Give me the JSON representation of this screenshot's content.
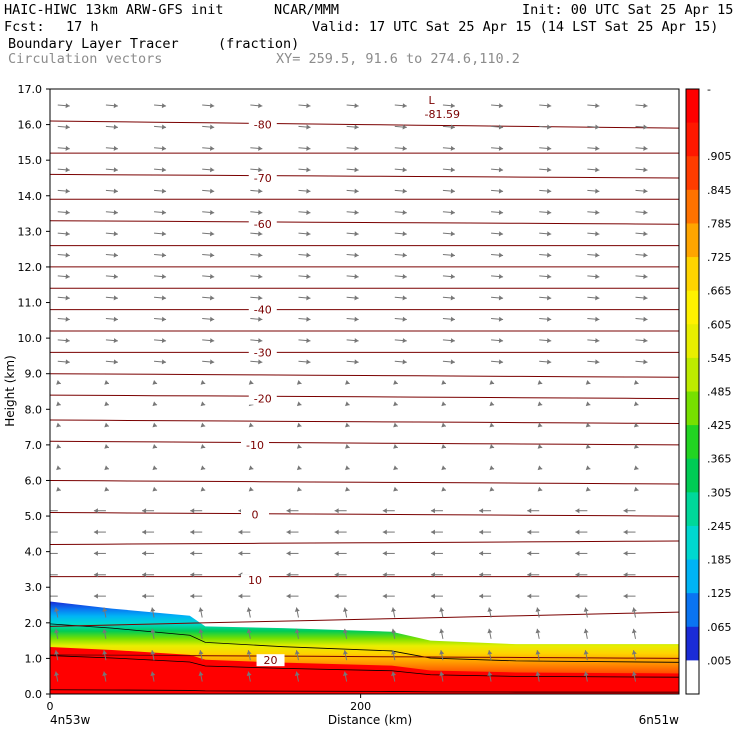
{
  "header": {
    "title_line": "HAIC-HIWC 13km ARW-GFS init",
    "org": "NCAR/MMM",
    "init": "Init: 00 UTC Sat 25 Apr 15",
    "fcst_label": "Fcst:",
    "fcst_value": "17 h",
    "valid": "Valid: 17 UTC Sat 25 Apr 15 (14 LST Sat 25 Apr 15)",
    "field_name": "Boundary Layer Tracer",
    "field_units": "(fraction)",
    "vector_label": "Circulation vectors",
    "xy_label": "XY= 259.5, 91.6 to 274.6,110.2"
  },
  "colors": {
    "contour": "#7a0000",
    "vector": "#777777",
    "isoline_black": "#000000"
  },
  "chart_data": {
    "type": "heatmap",
    "xlabel": "Distance (km)",
    "ylabel": "Height (km)",
    "xlim": [
      0,
      405
    ],
    "ylim": [
      0,
      17
    ],
    "x_ticks": [
      {
        "value": 0,
        "label": "0"
      },
      {
        "value": 200,
        "label": "200"
      }
    ],
    "x_end_labels": {
      "left": "4n53w",
      "right": "6n51w"
    },
    "y_ticks": [
      "0.0",
      "1.0",
      "2.0",
      "3.0",
      "4.0",
      "5.0",
      "6.0",
      "7.0",
      "8.0",
      "9.0",
      "10.0",
      "11.0",
      "12.0",
      "13.0",
      "14.0",
      "15.0",
      "16.0",
      "17.0"
    ],
    "colorbar": {
      "labels": [
        ".005",
        ".065",
        ".125",
        ".185",
        ".245",
        ".305",
        ".365",
        ".425",
        ".485",
        ".545",
        ".605",
        ".665",
        ".725",
        ".785",
        ".845",
        ".905"
      ],
      "top_tick": "-",
      "colors": [
        "#ffffff",
        "#1a2bd6",
        "#0a74f2",
        "#00b4f5",
        "#00d8d0",
        "#00d89a",
        "#00cc55",
        "#22d422",
        "#77e000",
        "#bdeb00",
        "#e8ee00",
        "#fff100",
        "#ffd400",
        "#ffa500",
        "#ff7200",
        "#ff3c00",
        "#ff1800",
        "#ff0000"
      ]
    },
    "tracer_top_profile": [
      {
        "x": 0,
        "top": 2.6,
        "core": 2.4
      },
      {
        "x": 40,
        "top": 2.4,
        "core": 2.25
      },
      {
        "x": 90,
        "top": 2.2,
        "core": 2.0
      },
      {
        "x": 100,
        "top": 1.9,
        "core": 1.75
      },
      {
        "x": 150,
        "top": 1.85,
        "core": 1.6
      },
      {
        "x": 220,
        "top": 1.75,
        "core": 1.45
      },
      {
        "x": 245,
        "top": 1.5,
        "core": 1.2
      },
      {
        "x": 300,
        "top": 1.4,
        "core": 1.1
      },
      {
        "x": 405,
        "top": 1.4,
        "core": 1.05
      }
    ],
    "temperature_contours": [
      {
        "label": "-80",
        "y_left": 16.1,
        "y_right": 15.9,
        "label_positions": [
          [
            55,
            16.0
          ],
          [
            380,
            15.9
          ]
        ]
      },
      {
        "label": "",
        "y_left": 15.2,
        "y_right": 15.2,
        "label_positions": []
      },
      {
        "label": "-70",
        "y_left": 14.6,
        "y_right": 14.5,
        "label_positions": [
          [
            55,
            14.5
          ],
          [
            380,
            14.5
          ]
        ]
      },
      {
        "label": "",
        "y_left": 13.9,
        "y_right": 13.9,
        "label_positions": []
      },
      {
        "label": "-60",
        "y_left": 13.3,
        "y_right": 13.2,
        "label_positions": [
          [
            55,
            13.2
          ],
          [
            380,
            13.2
          ]
        ]
      },
      {
        "label": "",
        "y_left": 12.6,
        "y_right": 12.6,
        "label_positions": []
      },
      {
        "label": "",
        "y_left": 12.0,
        "y_right": 12.0,
        "label_positions": []
      },
      {
        "label": "",
        "y_left": 11.4,
        "y_right": 11.4,
        "label_positions": []
      },
      {
        "label": "-40",
        "y_left": 10.8,
        "y_right": 10.8,
        "label_positions": [
          [
            55,
            10.8
          ],
          [
            380,
            10.8
          ]
        ]
      },
      {
        "label": "",
        "y_left": 10.2,
        "y_right": 10.2,
        "label_positions": []
      },
      {
        "label": "-30",
        "y_left": 9.6,
        "y_right": 9.6,
        "label_positions": [
          [
            55,
            9.6
          ],
          [
            380,
            9.6
          ]
        ]
      },
      {
        "label": "",
        "y_left": 9.0,
        "y_right": 8.9,
        "label_positions": []
      },
      {
        "label": "-20",
        "y_left": 8.4,
        "y_right": 8.3,
        "label_positions": [
          [
            55,
            8.3
          ],
          [
            380,
            8.3
          ]
        ]
      },
      {
        "label": "",
        "y_left": 7.7,
        "y_right": 7.6,
        "label_positions": []
      },
      {
        "label": "-10",
        "y_left": 7.1,
        "y_right": 7.0,
        "label_positions": [
          [
            50,
            7.0
          ],
          [
            370,
            7.0
          ]
        ]
      },
      {
        "label": "",
        "y_left": 6.0,
        "y_right": 5.9,
        "label_positions": []
      },
      {
        "label": "0",
        "y_left": 5.1,
        "y_right": 5.0,
        "label_positions": [
          [
            50,
            5.05
          ],
          [
            370,
            5.0
          ]
        ]
      },
      {
        "label": "",
        "y_left": 4.2,
        "y_right": 4.3,
        "label_positions": []
      },
      {
        "label": "10",
        "y_left": 3.3,
        "y_right": 3.3,
        "label_positions": [
          [
            50,
            3.2
          ],
          [
            370,
            3.2
          ]
        ]
      },
      {
        "label": "",
        "y_left": 1.9,
        "y_right": 2.3,
        "label_positions": []
      },
      {
        "label": "20",
        "y_left": 1.1,
        "y_right": 1.0,
        "label_positions": [
          [
            60,
            0.95
          ],
          [
            390,
            1.0
          ]
        ]
      }
    ],
    "low_marker": {
      "letter": "L",
      "value": "-81.59",
      "x": 236,
      "y": 16.8
    }
  }
}
